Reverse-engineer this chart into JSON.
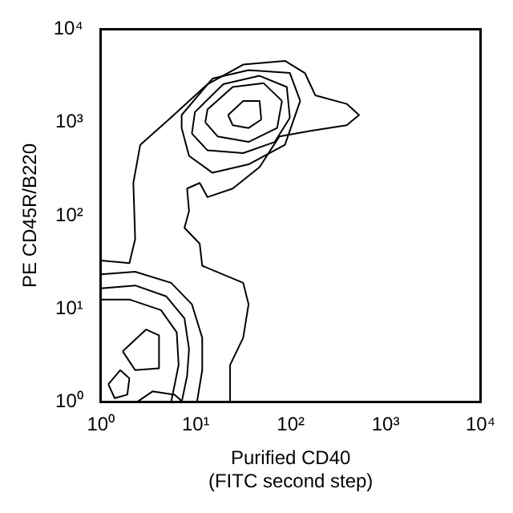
{
  "chart_data": {
    "type": "line",
    "xlabel": "Purified CD40\n(FITC second step)",
    "ylabel": "PE CD45R/B220",
    "log": "xy",
    "grid": false,
    "legend": false,
    "marker": "none",
    "line_style": "solid",
    "xlim": [
      1,
      10000
    ],
    "ylim": [
      1,
      10000
    ],
    "xticks": [
      {
        "value": 1,
        "label": "10⁰"
      },
      {
        "value": 10,
        "label": "10¹"
      },
      {
        "value": 100,
        "label": "10²"
      },
      {
        "value": 1000,
        "label": "10³"
      },
      {
        "value": 10000,
        "label": "10⁴"
      }
    ],
    "yticks": [
      {
        "value": 1,
        "label": "10⁰"
      },
      {
        "value": 10,
        "label": "10¹"
      },
      {
        "value": 100,
        "label": "10²"
      },
      {
        "value": 1000,
        "label": "10³"
      },
      {
        "value": 10000,
        "label": "10⁴"
      }
    ],
    "series": [
      {
        "color": "#000000",
        "x": [
          1,
          2.0,
          2.3,
          2.2,
          2.6,
          5.5,
          13.3,
          31.6,
          87,
          141,
          182,
          389,
          525,
          389,
          162,
          76,
          47,
          24.5,
          13.3,
          11,
          8.1,
          8.5,
          7.6,
          11,
          11.7,
          31.6,
          36,
          31.6,
          23,
          23
        ],
        "values": [
          33,
          31,
          56,
          224,
          575,
          1130,
          2570,
          4170,
          4570,
          3390,
          1950,
          1580,
          1200,
          933,
          813,
          708,
          331,
          195,
          158,
          224,
          195,
          112,
          74,
          50,
          29,
          19,
          11.2,
          4.9,
          2.5,
          1
        ]
      },
      {
        "color": "#000000",
        "x": [
          7.1,
          15,
          36,
          98,
          126
        ],
        "values": [
          1200,
          2950,
          3630,
          3390,
          1700
        ]
      },
      {
        "color": "#000000",
        "x": [
          7.1,
          7.1,
          8.5,
          15,
          36,
          87,
          126
        ],
        "values": [
          1200,
          871,
          437,
          288,
          355,
          575,
          1700
        ]
      },
      {
        "color": "#000000",
        "x": [
          9.1,
          9.8,
          19.5,
          47,
          91,
          98
        ],
        "values": [
          759,
          1290,
          2570,
          3160,
          2400,
          1120
        ]
      },
      {
        "color": "#000000",
        "x": [
          9.1,
          13.3,
          31.6,
          68,
          98
        ],
        "values": [
          759,
          501,
          468,
          617,
          1120
        ]
      },
      {
        "color": "#000000",
        "x": [
          12.6,
          13.3,
          24.5,
          52,
          81
        ],
        "values": [
          1000,
          1380,
          2400,
          2630,
          1700
        ]
      },
      {
        "color": "#000000",
        "x": [
          12.6,
          17,
          36,
          72,
          81
        ],
        "values": [
          1000,
          708,
          617,
          871,
          1700
        ]
      },
      {
        "color": "#000000",
        "x": [
          21.9,
          31.6,
          47,
          49
        ],
        "values": [
          1200,
          1700,
          1700,
          1070
        ]
      },
      {
        "color": "#000000",
        "x": [
          21.9,
          24.5,
          36,
          49
        ],
        "values": [
          1200,
          933,
          871,
          1070
        ]
      },
      {
        "color": "#000000",
        "x": [
          1,
          2.3,
          5.5,
          9.1,
          11.7,
          11.7,
          10.3
        ],
        "values": [
          23.4,
          25,
          19,
          11.2,
          4.9,
          2.2,
          1
        ]
      },
      {
        "color": "#000000",
        "x": [
          1,
          2.3,
          4.9,
          7.6,
          8.5,
          8.1,
          7.1
        ],
        "values": [
          16.6,
          17.8,
          13.6,
          7.9,
          3.7,
          1.9,
          1
        ]
      },
      {
        "color": "#000000",
        "x": [
          1,
          2.0,
          4.3,
          6.3,
          6.6,
          5.5
        ],
        "values": [
          12.6,
          12.6,
          9.7,
          5.6,
          2.5,
          1
        ]
      },
      {
        "color": "#000000",
        "x": [
          1.7,
          3.0,
          4.1,
          4.1
        ],
        "values": [
          3.5,
          6.0,
          5.2,
          2.3
        ]
      },
      {
        "color": "#000000",
        "x": [
          1.7,
          2.3,
          4.1
        ],
        "values": [
          3.5,
          2.2,
          2.3
        ]
      },
      {
        "color": "#000000",
        "x": [
          1.2,
          1.6,
          2.0
        ],
        "values": [
          1.55,
          2.2,
          1.8
        ]
      },
      {
        "color": "#000000",
        "x": [
          1.2,
          1.4,
          1.9,
          2.0
        ],
        "values": [
          1.55,
          1.1,
          1.2,
          1.8
        ]
      },
      {
        "color": "#000000",
        "x": [
          2.4,
          3.5,
          6.0,
          7.3
        ],
        "values": [
          1,
          1.3,
          1.2,
          1
        ]
      }
    ]
  }
}
